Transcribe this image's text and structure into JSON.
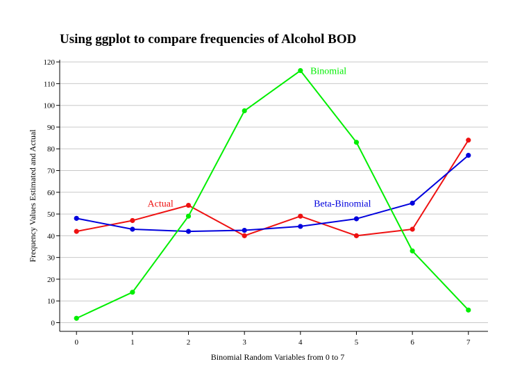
{
  "chart_data": {
    "type": "line",
    "title": "Using ggplot to compare frequencies of Alcohol BOD",
    "xlabel": "Binomial Random Variables from 0 to 7",
    "ylabel": "Frequency Values Estimated and Actual",
    "x": [
      0,
      1,
      2,
      3,
      4,
      5,
      6,
      7
    ],
    "xlim": [
      -0.3,
      7.35
    ],
    "ylim": [
      -4,
      121
    ],
    "yticks": [
      0,
      10,
      20,
      30,
      40,
      50,
      60,
      70,
      80,
      90,
      100,
      110,
      120
    ],
    "grid": true,
    "legend": "none",
    "series": [
      {
        "name": "Actual",
        "color": "#ee1111",
        "values": [
          42,
          47,
          54,
          40,
          49,
          40,
          43,
          84
        ],
        "label_at": [
          1.5,
          55
        ]
      },
      {
        "name": "Beta-Binomial",
        "color": "#0000dd",
        "values": [
          48,
          43,
          42,
          42.5,
          44.3,
          47.8,
          55,
          77
        ],
        "label_at": [
          4.75,
          55
        ]
      },
      {
        "name": "Binomial",
        "color": "#00ee00",
        "values": [
          2,
          14,
          49,
          97.5,
          116,
          83,
          33,
          5.8
        ],
        "label_at": [
          4.5,
          116
        ]
      }
    ]
  }
}
